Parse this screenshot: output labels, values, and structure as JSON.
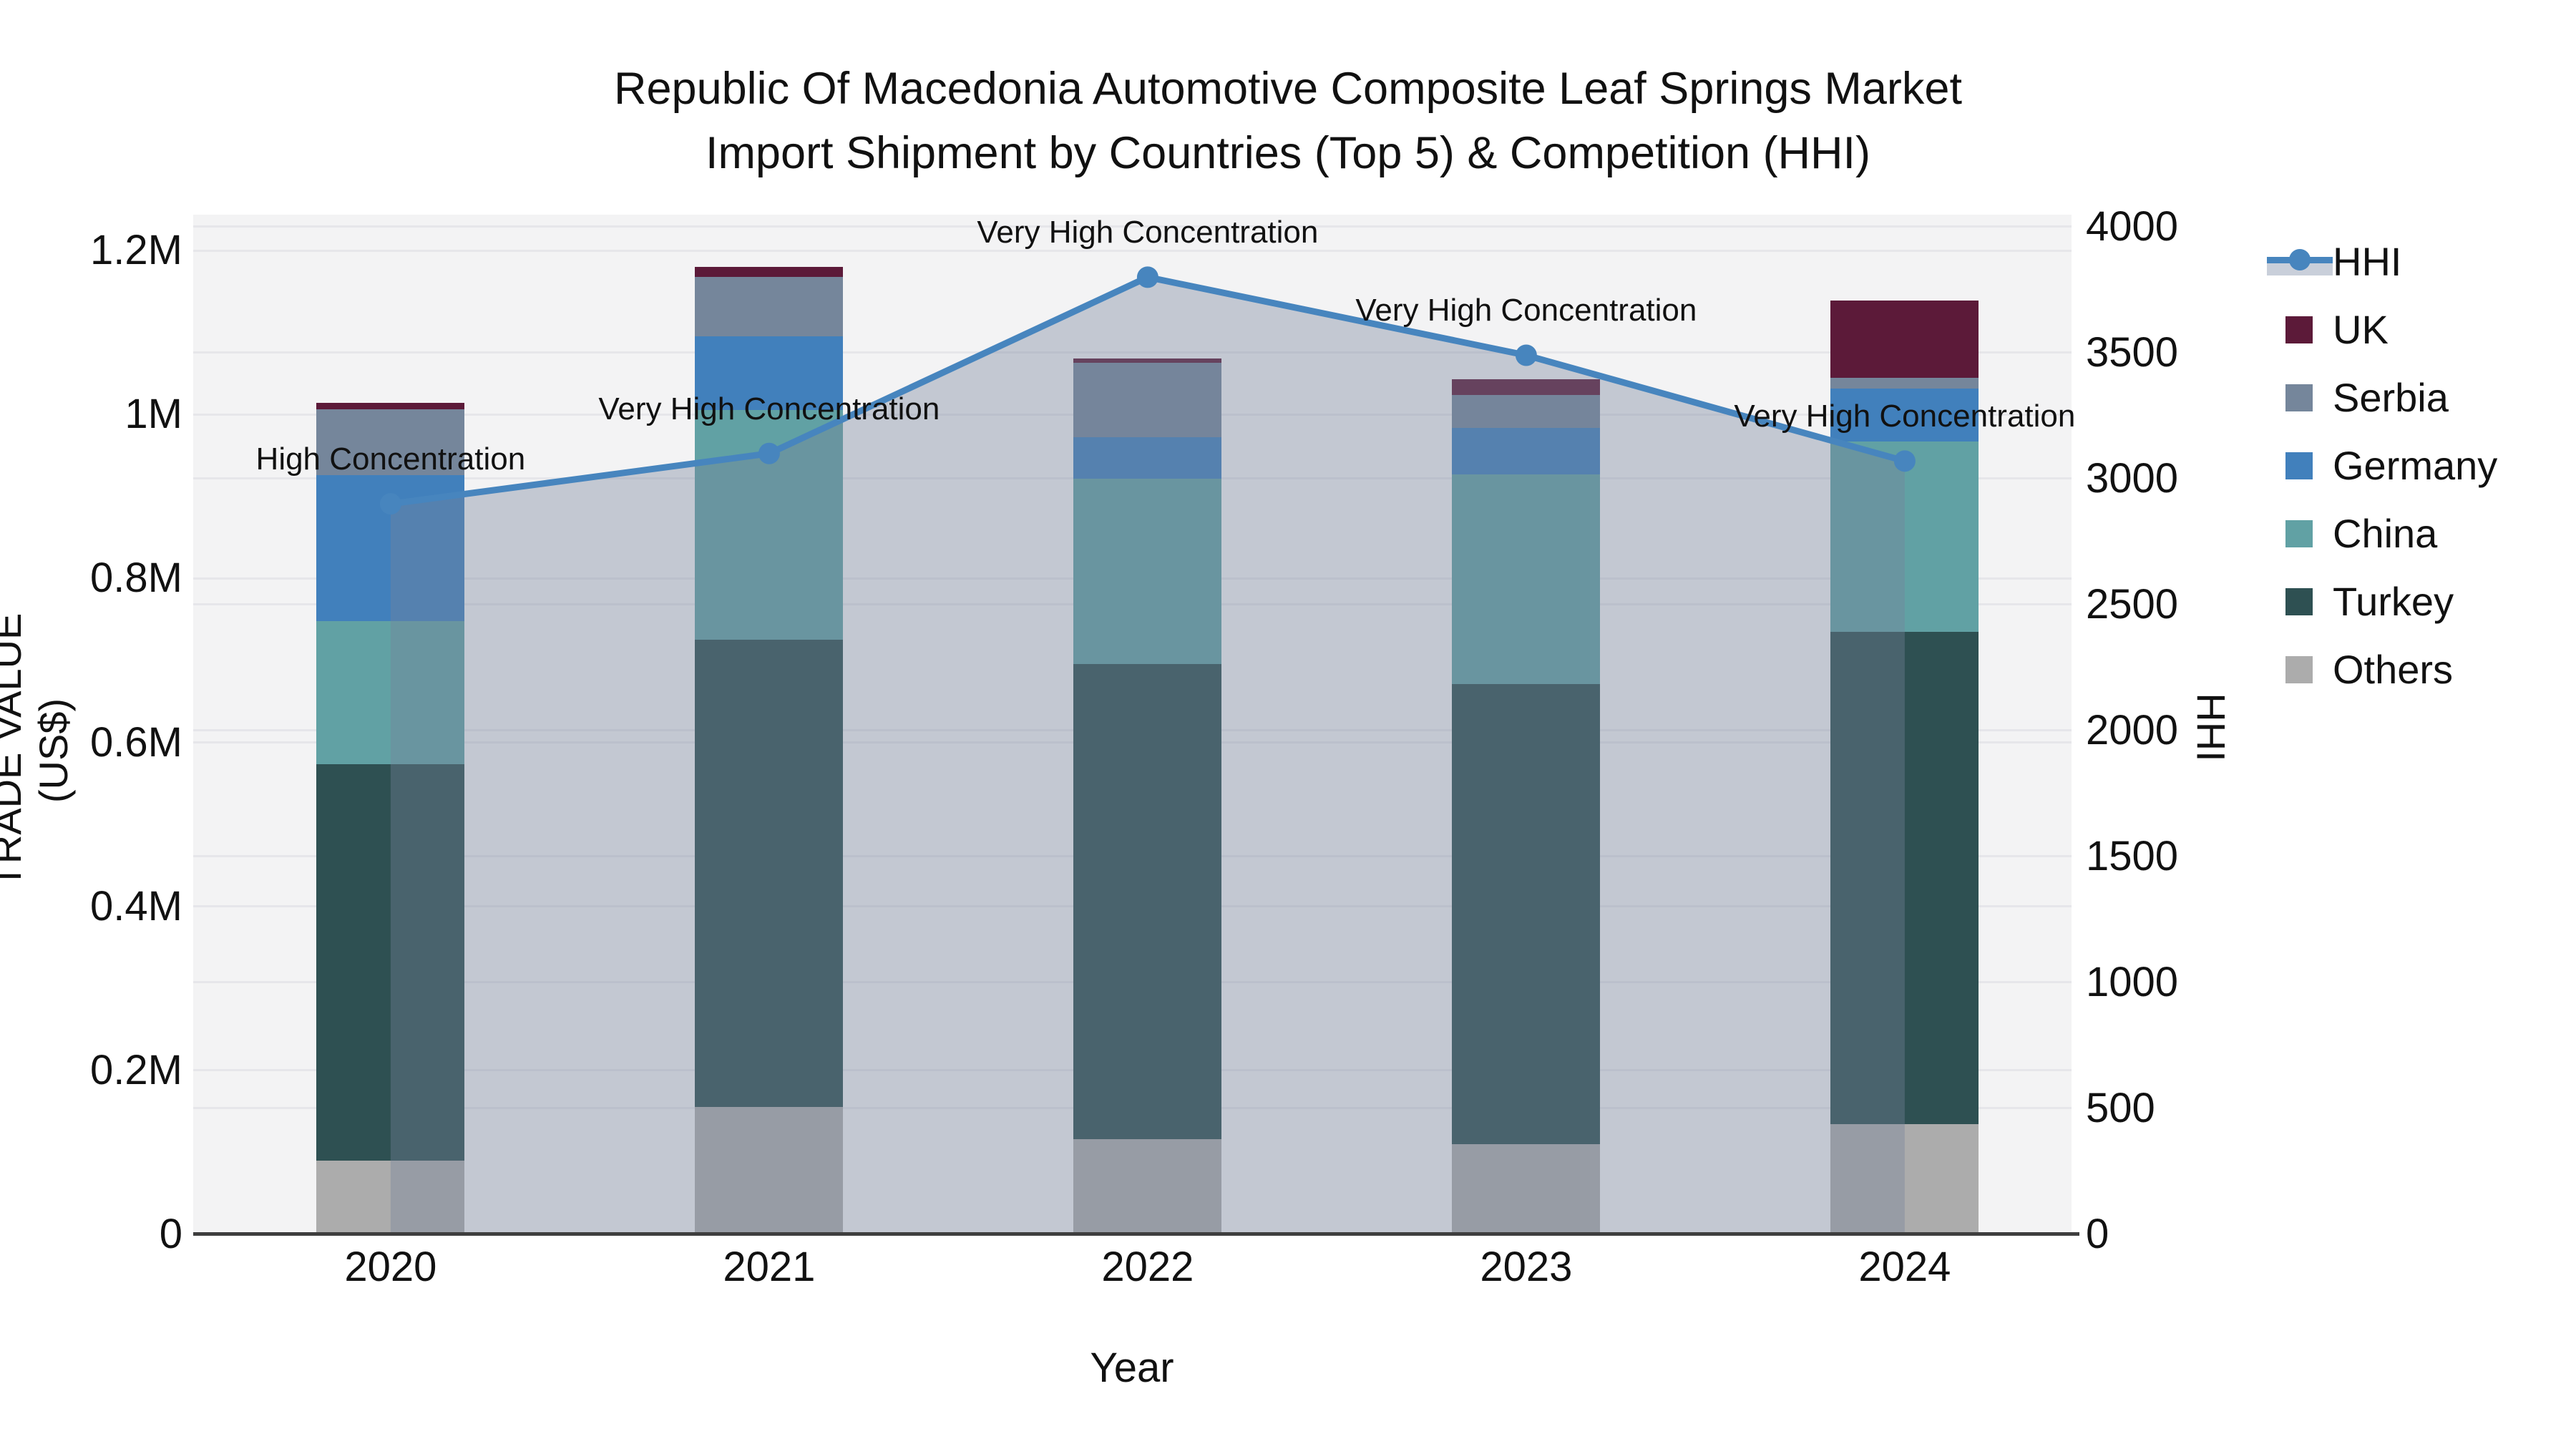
{
  "title": {
    "line1": "Republic Of Macedonia Automotive Composite Leaf Springs Market",
    "line2": "Import Shipment by Countries (Top 5) & Competition (HHI)"
  },
  "axes": {
    "x": {
      "title": "Year",
      "categories": [
        "2020",
        "2021",
        "2022",
        "2023",
        "2024"
      ]
    },
    "y_left": {
      "title": "TRADE VALUE (US$)",
      "range": [
        0,
        1200000
      ],
      "ticks": [
        {
          "value": 0,
          "label": "0"
        },
        {
          "value": 200000,
          "label": "0.2M"
        },
        {
          "value": 400000,
          "label": "0.4M"
        },
        {
          "value": 600000,
          "label": "0.6M"
        },
        {
          "value": 800000,
          "label": "0.8M"
        },
        {
          "value": 1000000,
          "label": "1M"
        },
        {
          "value": 1200000,
          "label": "1.2M"
        }
      ]
    },
    "y_right": {
      "title": "HHI",
      "range": [
        0,
        4000
      ],
      "ticks": [
        {
          "value": 0,
          "label": "0"
        },
        {
          "value": 500,
          "label": "500"
        },
        {
          "value": 1000,
          "label": "1000"
        },
        {
          "value": 1500,
          "label": "1500"
        },
        {
          "value": 2000,
          "label": "2000"
        },
        {
          "value": 2500,
          "label": "2500"
        },
        {
          "value": 3000,
          "label": "3000"
        },
        {
          "value": 3500,
          "label": "3500"
        },
        {
          "value": 4000,
          "label": "4000"
        }
      ]
    }
  },
  "legend": [
    {
      "type": "line",
      "label": "HHI",
      "color": "#4785BE",
      "fill": "#C9CFDA"
    },
    {
      "type": "swatch",
      "label": "UK",
      "color": "#5C1A39"
    },
    {
      "type": "swatch",
      "label": "Serbia",
      "color": "#75869B"
    },
    {
      "type": "swatch",
      "label": "Germany",
      "color": "#4180BC"
    },
    {
      "type": "swatch",
      "label": "China",
      "color": "#61A1A4"
    },
    {
      "type": "swatch",
      "label": "Turkey",
      "color": "#2E5052"
    },
    {
      "type": "swatch",
      "label": "Others",
      "color": "#ACACAC"
    }
  ],
  "chart_data": {
    "type": "combo: stacked bar (left axis) + line with area fill (right axis)",
    "title": "Republic Of Macedonia Automotive Composite Leaf Springs Market Import Shipment by Countries (Top 5) & Competition (HHI)",
    "xlabel": "Year",
    "ylabel_left": "TRADE VALUE (US$)",
    "ylabel_right": "HHI",
    "ylim_left": [
      0,
      1200000
    ],
    "ylim_right": [
      0,
      4000
    ],
    "grid": true,
    "legend_position": "right",
    "categories": [
      "2020",
      "2021",
      "2022",
      "2023",
      "2024"
    ],
    "bar_series_bottom_to_top": [
      {
        "name": "Others",
        "color": "#ACACAC",
        "values": [
          90000,
          155000,
          116000,
          110000,
          134000
        ]
      },
      {
        "name": "Turkey",
        "color": "#2E5052",
        "values": [
          483000,
          570000,
          580000,
          561000,
          601000
        ]
      },
      {
        "name": "China",
        "color": "#61A1A4",
        "values": [
          175000,
          280000,
          226000,
          256000,
          232000
        ]
      },
      {
        "name": "Germany",
        "color": "#4180BC",
        "values": [
          178000,
          90000,
          50000,
          57000,
          65000
        ]
      },
      {
        "name": "Serbia",
        "color": "#75869B",
        "values": [
          80000,
          73000,
          91000,
          40000,
          13000
        ]
      },
      {
        "name": "UK",
        "color": "#5C1A39",
        "values": [
          8000,
          12000,
          5000,
          19000,
          94000
        ]
      }
    ],
    "bar_totals": [
      1014000,
      1180000,
      1068000,
      1043000,
      1139000
    ],
    "line_series": {
      "name": "HHI",
      "color": "#4785BE",
      "area_fill_color": "rgba(118,132,155,0.38)",
      "values": [
        2900,
        3100,
        3800,
        3490,
        3070
      ]
    },
    "annotations": [
      "High Concentration",
      "Very High Concentration",
      "Very High Concentration",
      "Very High Concentration",
      "Very High Concentration"
    ]
  }
}
